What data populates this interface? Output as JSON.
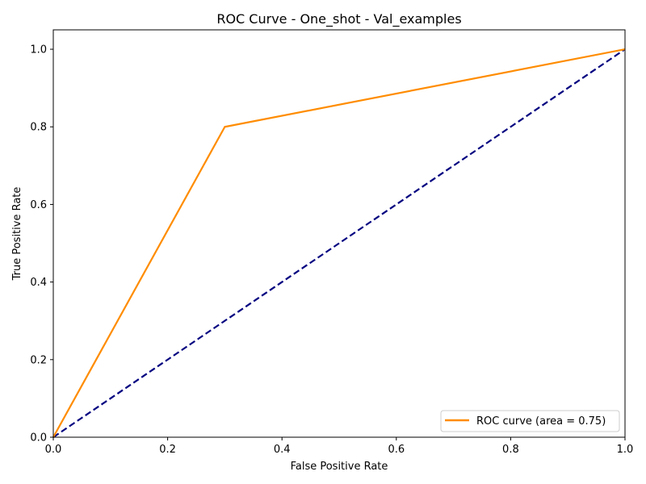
{
  "chart_data": {
    "type": "line",
    "title": "ROC Curve - One_shot - Val_examples",
    "xlabel": "False Positive Rate",
    "ylabel": "True Positive Rate",
    "xlim": [
      0.0,
      1.0
    ],
    "ylim": [
      0.0,
      1.05
    ],
    "x_ticks": [
      0.0,
      0.2,
      0.4,
      0.6,
      0.8,
      1.0
    ],
    "y_ticks": [
      0.0,
      0.2,
      0.4,
      0.6,
      0.8,
      1.0
    ],
    "x_tick_labels": [
      "0.0",
      "0.2",
      "0.4",
      "0.6",
      "0.8",
      "1.0"
    ],
    "y_tick_labels": [
      "0.0",
      "0.2",
      "0.4",
      "0.6",
      "0.8",
      "1.0"
    ],
    "grid": false,
    "legend_position": "lower-right",
    "series": [
      {
        "name": "ROC curve (area = 0.75)",
        "x": [
          0.0,
          0.3,
          1.0
        ],
        "y": [
          0.0,
          0.8,
          1.0
        ],
        "color": "#ff8c00",
        "style": "solid",
        "in_legend": true
      },
      {
        "name": "chance diagonal",
        "x": [
          0.0,
          1.0
        ],
        "y": [
          0.0,
          1.0
        ],
        "color": "#000080",
        "style": "dashed",
        "in_legend": false
      }
    ]
  }
}
